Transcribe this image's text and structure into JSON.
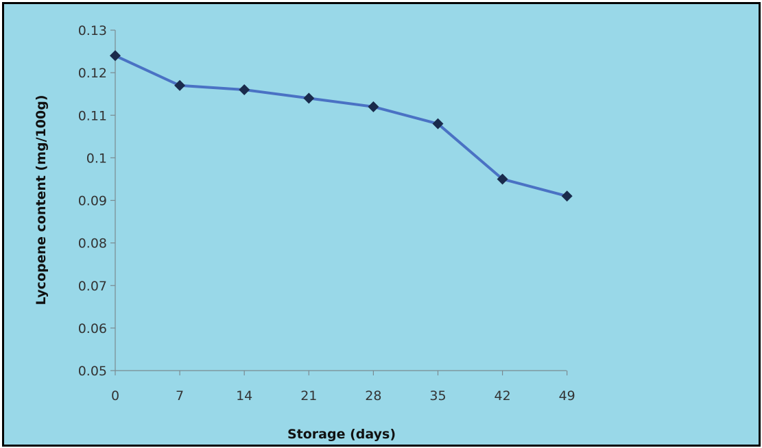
{
  "colors": {
    "background": "#99d8e8",
    "line": "#4a72c4",
    "marker": "#1a2b4c",
    "axis": "#7a8a90",
    "frame": "#000000"
  },
  "chart_data": {
    "type": "line",
    "title": "",
    "xlabel": "Storage (days)",
    "ylabel": "Lycopene content (mg/100g)",
    "x": [
      0,
      7,
      14,
      21,
      28,
      35,
      42,
      49
    ],
    "x_tick_labels": [
      "0",
      "7",
      "14",
      "21",
      "28",
      "35",
      "42",
      "49"
    ],
    "ylim": [
      0.05,
      0.13
    ],
    "y_ticks": [
      0.05,
      0.06,
      0.07,
      0.08,
      0.09,
      0.1,
      0.11,
      0.12,
      0.13
    ],
    "y_tick_labels": [
      "0.05",
      "0.06",
      "0.07",
      "0.08",
      "0.09",
      "0.1",
      "0.11",
      "0.12",
      "0.13"
    ],
    "grid": false,
    "legend": "none",
    "marker": "diamond",
    "series": [
      {
        "values": [
          0.124,
          0.117,
          0.116,
          0.114,
          0.112,
          0.108,
          0.095,
          0.091
        ]
      }
    ]
  }
}
